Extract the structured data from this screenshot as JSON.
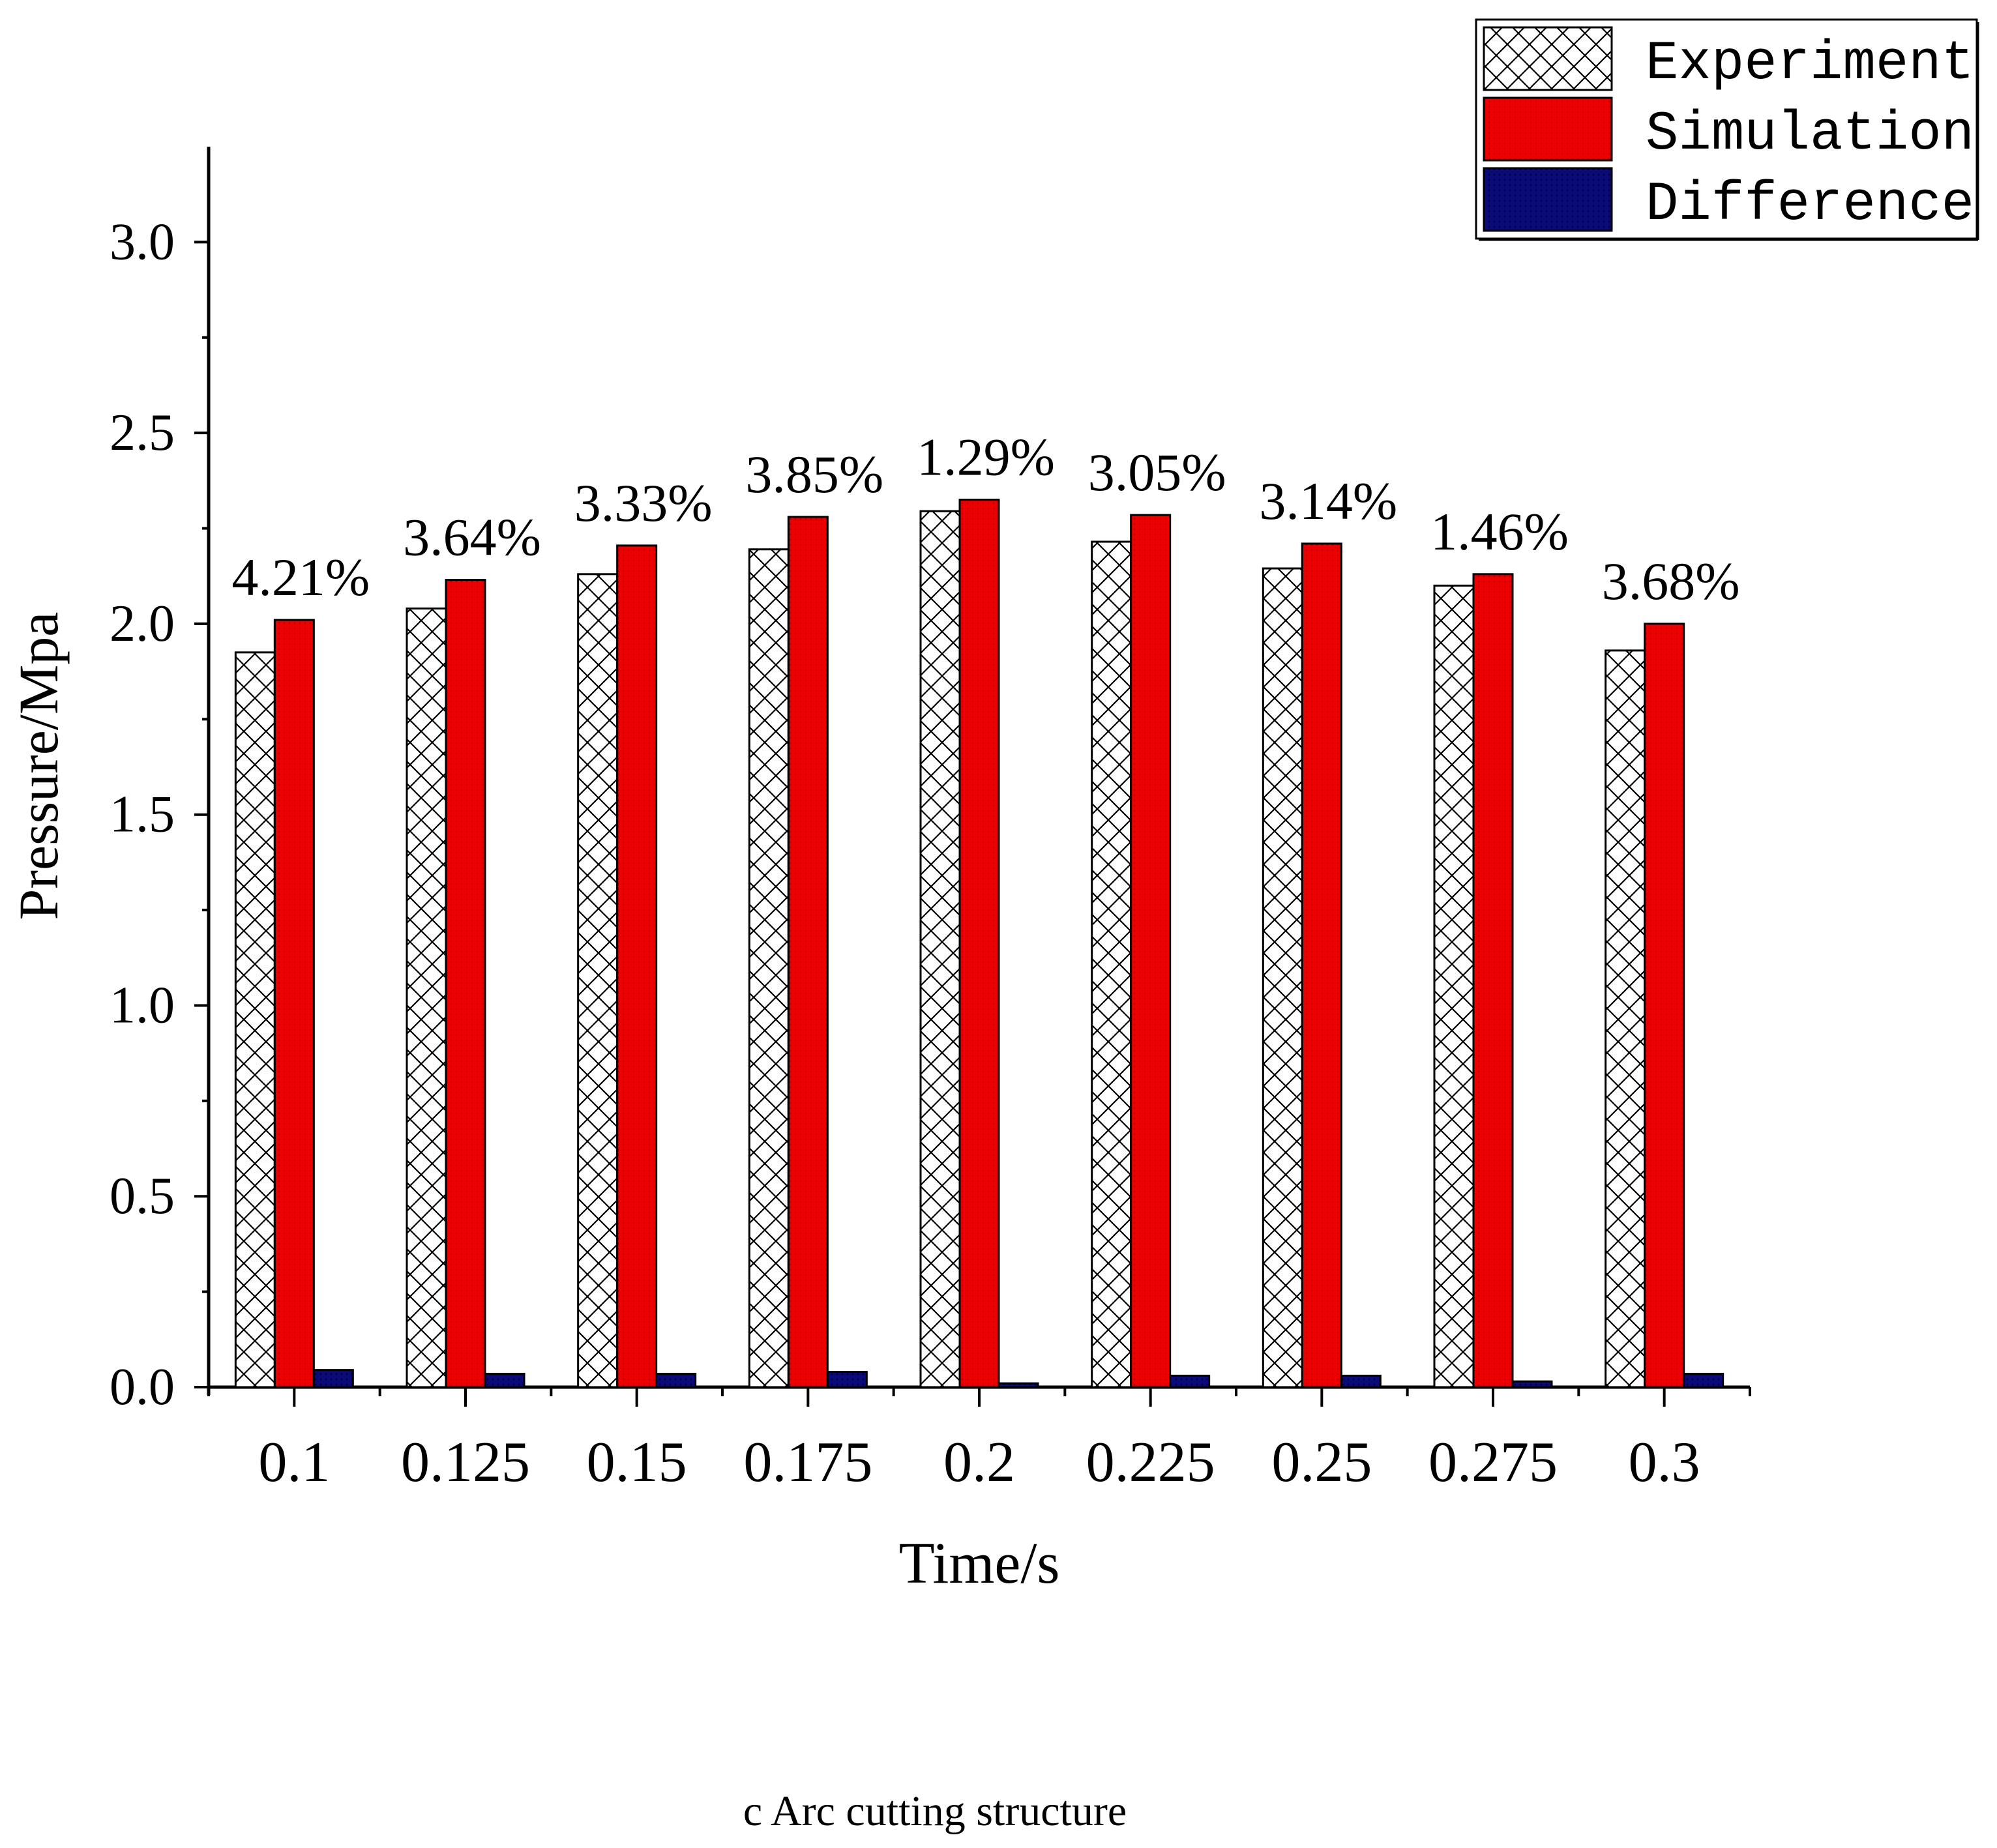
{
  "caption": "c Arc cutting structure",
  "chart_data": {
    "type": "bar",
    "xlabel": "Time/s",
    "ylabel": "Pressure/Mpa",
    "ylim": [
      0,
      3.25
    ],
    "yticks": [
      0.0,
      0.5,
      1.0,
      1.5,
      2.0,
      2.5,
      3.0
    ],
    "ytick_labels": [
      "0.0",
      "0.5",
      "1.0",
      "1.5",
      "2.0",
      "2.5",
      "3.0"
    ],
    "categories": [
      "0.1",
      "0.125",
      "0.15",
      "0.175",
      "0.2",
      "0.225",
      "0.25",
      "0.275",
      "0.3"
    ],
    "series": [
      {
        "name": "Experiment",
        "pattern": "crosshatch",
        "color": "#ffffff",
        "values": [
          1.925,
          2.04,
          2.13,
          2.195,
          2.295,
          2.215,
          2.145,
          2.1,
          1.93
        ]
      },
      {
        "name": "Simulation",
        "color": "#ee0000",
        "values": [
          2.01,
          2.115,
          2.205,
          2.28,
          2.325,
          2.285,
          2.21,
          2.13,
          2.0
        ]
      },
      {
        "name": "Difference",
        "color": "#0a0a78",
        "values": [
          0.045,
          0.035,
          0.035,
          0.04,
          0.01,
          0.03,
          0.03,
          0.015,
          0.035
        ]
      }
    ],
    "annotations": [
      "4.21%",
      "3.64%",
      "3.33%",
      "3.85%",
      "1.29%",
      "3.05%",
      "3.14%",
      "1.46%",
      "3.68%"
    ],
    "legend": {
      "position": "top-right",
      "entries": [
        "Experiment",
        "Simulation",
        "Difference"
      ]
    },
    "grid": false
  }
}
